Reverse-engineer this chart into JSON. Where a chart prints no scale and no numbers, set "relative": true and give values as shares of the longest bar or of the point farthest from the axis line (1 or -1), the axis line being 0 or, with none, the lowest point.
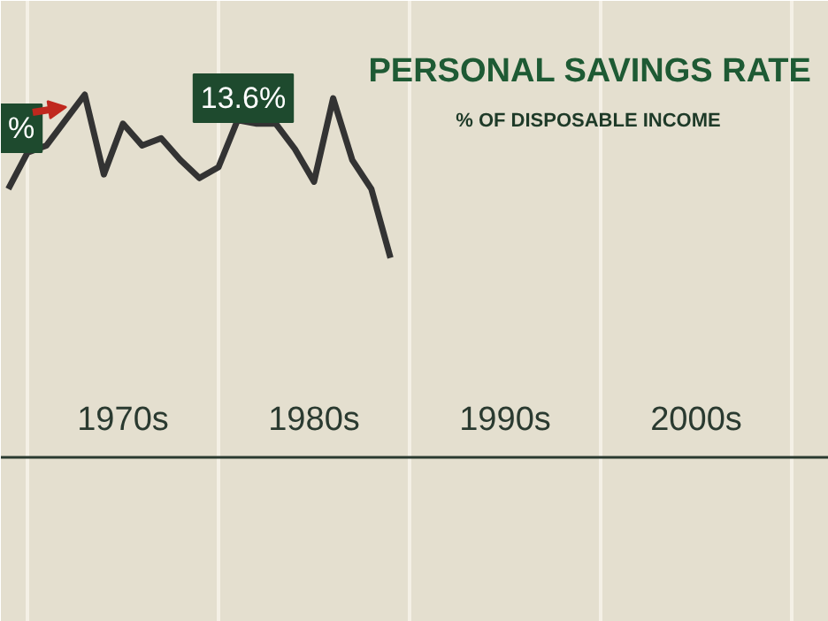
{
  "chart_data": {
    "type": "line",
    "title": "PERSONAL SAVINGS RATE",
    "subtitle": "% OF DISPOSABLE INCOME",
    "relative": true,
    "categories": [
      null,
      null,
      null,
      null,
      null,
      null,
      "1970s",
      null,
      null,
      null,
      null,
      null,
      null,
      null,
      null,
      null,
      "1980s",
      null,
      null,
      null,
      null,
      null,
      null,
      null,
      null,
      null,
      "1990s",
      null,
      null,
      null,
      null,
      null,
      null,
      null,
      null,
      null,
      "2000s",
      null,
      null,
      null,
      null,
      null,
      null
    ],
    "series": [
      {
        "color": "#333333",
        "values": [
          0.74,
          0.84,
          0.86,
          0.93,
          1.0,
          0.78,
          0.92,
          0.86,
          0.88,
          0.82,
          0.77,
          0.8,
          0.93,
          0.92,
          0.92,
          0.85,
          0.76,
          0.99,
          0.82,
          0.74,
          0.55,
          null,
          null,
          null,
          null,
          null,
          null,
          null,
          null,
          null,
          null,
          null,
          null,
          null,
          null,
          null,
          null,
          null,
          null,
          null,
          null,
          null,
          null
        ]
      }
    ],
    "grid": "x",
    "marker": "none",
    "line_style": "solid",
    "annotations": [
      "13.6%",
      "%"
    ]
  }
}
